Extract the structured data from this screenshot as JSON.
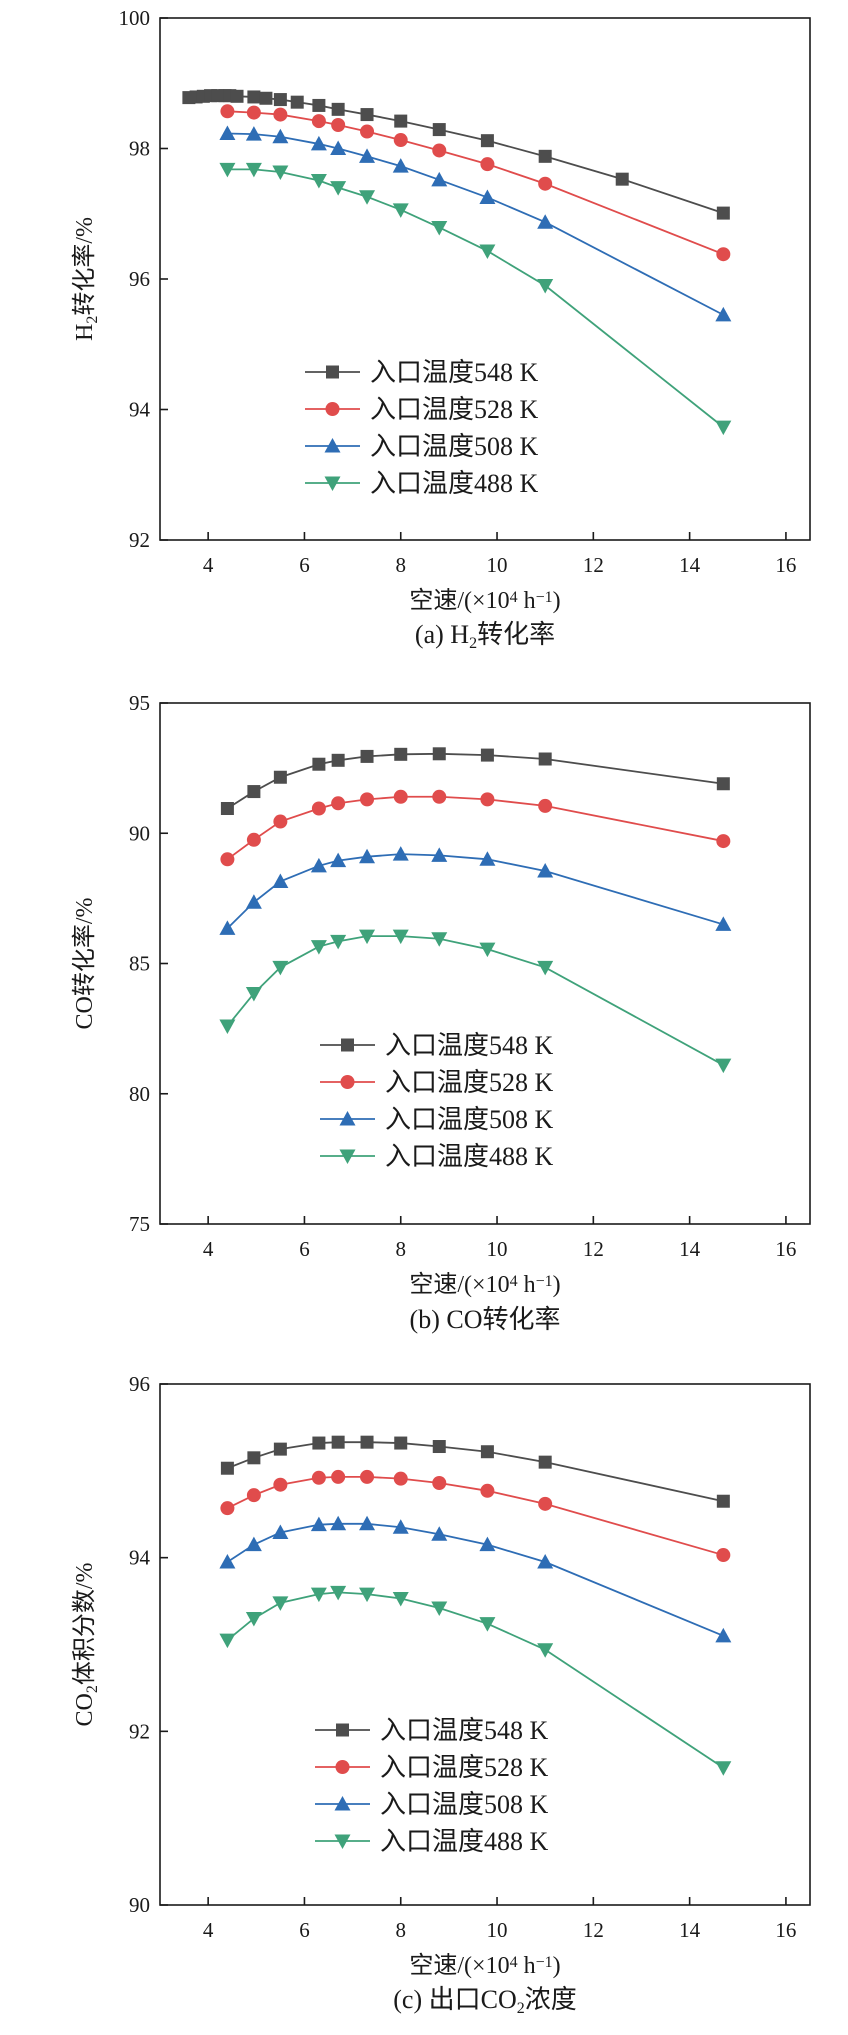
{
  "chart_data": [
    {
      "type": "line",
      "caption_prefix": "(a) H",
      "caption_sub": "2",
      "caption_suffix": "转化率",
      "ylabel_prefix": "H",
      "ylabel_sub": "2",
      "ylabel_suffix": "转化率/%",
      "xlabel_prefix": "空速/(×10",
      "xlabel_sup": "4",
      "xlabel_mid": " h",
      "xlabel_sup2": "−1",
      "xlabel_suffix": ")",
      "xlim": [
        3,
        16.5
      ],
      "ylim": [
        92,
        100
      ],
      "xticks": [
        4,
        6,
        8,
        10,
        12,
        14,
        16
      ],
      "yticks": [
        92,
        94,
        96,
        98,
        100
      ],
      "legend_position": "lower-left",
      "series": [
        {
          "name": "入口温度548 K",
          "color": "#4d4d4d",
          "marker": "square",
          "x": [
            3.6,
            3.75,
            3.9,
            4.05,
            4.2,
            4.35,
            4.45,
            4.6,
            4.95,
            5.2,
            5.5,
            5.85,
            6.3,
            6.7,
            7.3,
            8.0,
            8.8,
            9.8,
            11.0,
            12.6,
            14.7
          ],
          "y": [
            98.78,
            98.79,
            98.8,
            98.81,
            98.81,
            98.81,
            98.81,
            98.8,
            98.79,
            98.77,
            98.75,
            98.71,
            98.66,
            98.6,
            98.52,
            98.42,
            98.29,
            98.12,
            97.88,
            97.53,
            97.01
          ]
        },
        {
          "name": "入口温度528 K",
          "color": "#e04c4c",
          "marker": "circle",
          "x": [
            4.4,
            4.95,
            5.5,
            6.3,
            6.7,
            7.3,
            8.0,
            8.8,
            9.8,
            11.0,
            14.7
          ],
          "y": [
            98.57,
            98.55,
            98.52,
            98.42,
            98.36,
            98.26,
            98.13,
            97.97,
            97.76,
            97.46,
            96.38
          ]
        },
        {
          "name": "入口温度508 K",
          "color": "#2e6db5",
          "marker": "triangle-up",
          "x": [
            4.4,
            4.95,
            5.5,
            6.3,
            6.7,
            7.3,
            8.0,
            8.8,
            9.8,
            11.0,
            14.7
          ],
          "y": [
            98.23,
            98.22,
            98.18,
            98.07,
            98.0,
            97.88,
            97.73,
            97.52,
            97.25,
            96.87,
            95.45
          ]
        },
        {
          "name": "入口温度488 K",
          "color": "#3fa27a",
          "marker": "triangle-down",
          "x": [
            4.4,
            4.95,
            5.5,
            6.3,
            6.7,
            7.3,
            8.0,
            8.8,
            9.8,
            11.0,
            14.7
          ],
          "y": [
            97.68,
            97.68,
            97.64,
            97.51,
            97.4,
            97.26,
            97.06,
            96.79,
            96.43,
            95.9,
            93.73
          ]
        }
      ]
    },
    {
      "type": "line",
      "caption_prefix": "(b) CO转化率",
      "caption_sub": "",
      "caption_suffix": "",
      "ylabel_prefix": "CO转化率/%",
      "ylabel_sub": "",
      "ylabel_suffix": "",
      "xlabel_prefix": "空速/(×10",
      "xlabel_sup": "4",
      "xlabel_mid": " h",
      "xlabel_sup2": "−1",
      "xlabel_suffix": ")",
      "xlim": [
        3,
        16.5
      ],
      "ylim": [
        75,
        95
      ],
      "xticks": [
        4,
        6,
        8,
        10,
        12,
        14,
        16
      ],
      "yticks": [
        75,
        80,
        85,
        90,
        95
      ],
      "legend_position": "lower-center",
      "series": [
        {
          "name": "入口温度548 K",
          "color": "#4d4d4d",
          "marker": "square",
          "x": [
            4.4,
            4.95,
            5.5,
            6.3,
            6.7,
            7.3,
            8.0,
            8.8,
            9.8,
            11.0,
            14.7
          ],
          "y": [
            90.95,
            91.6,
            92.15,
            92.65,
            92.8,
            92.95,
            93.03,
            93.05,
            93.0,
            92.85,
            91.9
          ]
        },
        {
          "name": "入口温度528 K",
          "color": "#e04c4c",
          "marker": "circle",
          "x": [
            4.4,
            4.95,
            5.5,
            6.3,
            6.7,
            7.3,
            8.0,
            8.8,
            9.8,
            11.0,
            14.7
          ],
          "y": [
            89.0,
            89.75,
            90.45,
            90.95,
            91.15,
            91.3,
            91.4,
            91.4,
            91.3,
            91.05,
            89.7
          ]
        },
        {
          "name": "入口温度508 K",
          "color": "#2e6db5",
          "marker": "triangle-up",
          "x": [
            4.4,
            4.95,
            5.5,
            6.3,
            6.7,
            7.3,
            8.0,
            8.8,
            9.8,
            11.0,
            14.7
          ],
          "y": [
            86.35,
            87.35,
            88.15,
            88.75,
            88.95,
            89.1,
            89.2,
            89.15,
            89.0,
            88.55,
            86.5
          ]
        },
        {
          "name": "入口温度488 K",
          "color": "#3fa27a",
          "marker": "triangle-down",
          "x": [
            4.4,
            4.95,
            5.5,
            6.3,
            6.7,
            7.3,
            8.0,
            8.8,
            9.8,
            11.0,
            14.7
          ],
          "y": [
            82.6,
            83.85,
            84.85,
            85.65,
            85.85,
            86.05,
            86.05,
            85.95,
            85.55,
            84.85,
            81.1
          ]
        }
      ]
    },
    {
      "type": "line",
      "caption_prefix": "(c) 出口CO",
      "caption_sub": "2",
      "caption_suffix": "浓度",
      "ylabel_prefix": "CO",
      "ylabel_sub": "2",
      "ylabel_suffix": "体积分数/%",
      "xlabel_prefix": "空速/(×10",
      "xlabel_sup": "4",
      "xlabel_mid": " h",
      "xlabel_sup2": "−1",
      "xlabel_suffix": ")",
      "xlim": [
        3,
        16.5
      ],
      "ylim": [
        90,
        96
      ],
      "xticks": [
        4,
        6,
        8,
        10,
        12,
        14,
        16
      ],
      "yticks": [
        90,
        92,
        94,
        96
      ],
      "legend_position": "lower-center",
      "series": [
        {
          "name": "入口温度548 K",
          "color": "#4d4d4d",
          "marker": "square",
          "x": [
            4.4,
            4.95,
            5.5,
            6.3,
            6.7,
            7.3,
            8.0,
            8.8,
            9.8,
            11.0,
            14.7
          ],
          "y": [
            95.03,
            95.15,
            95.25,
            95.32,
            95.33,
            95.33,
            95.32,
            95.28,
            95.22,
            95.1,
            94.65
          ]
        },
        {
          "name": "入口温度528 K",
          "color": "#e04c4c",
          "marker": "circle",
          "x": [
            4.4,
            4.95,
            5.5,
            6.3,
            6.7,
            7.3,
            8.0,
            8.8,
            9.8,
            11.0,
            14.7
          ],
          "y": [
            94.57,
            94.72,
            94.84,
            94.92,
            94.93,
            94.93,
            94.91,
            94.86,
            94.77,
            94.62,
            94.03
          ]
        },
        {
          "name": "入口温度508 K",
          "color": "#2e6db5",
          "marker": "triangle-up",
          "x": [
            4.4,
            4.95,
            5.5,
            6.3,
            6.7,
            7.3,
            8.0,
            8.8,
            9.8,
            11.0,
            14.7
          ],
          "y": [
            93.95,
            94.15,
            94.29,
            94.38,
            94.39,
            94.39,
            94.35,
            94.27,
            94.15,
            93.95,
            93.1
          ]
        },
        {
          "name": "入口温度488 K",
          "color": "#3fa27a",
          "marker": "triangle-down",
          "x": [
            4.4,
            4.95,
            5.5,
            6.3,
            6.7,
            7.3,
            8.0,
            8.8,
            9.8,
            11.0,
            14.7
          ],
          "y": [
            93.05,
            93.3,
            93.48,
            93.58,
            93.6,
            93.58,
            93.53,
            93.42,
            93.24,
            92.94,
            91.58
          ]
        }
      ]
    }
  ]
}
